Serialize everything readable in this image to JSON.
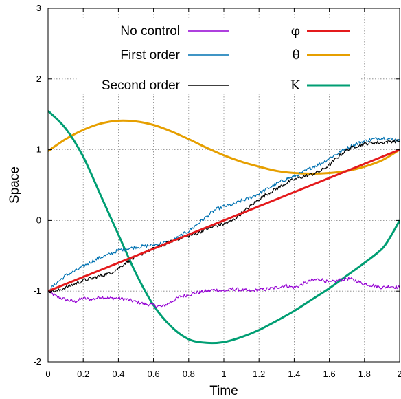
{
  "chart_data": {
    "type": "line",
    "xlabel": "Time",
    "ylabel": "Space",
    "xlim": [
      0,
      2
    ],
    "ylim": [
      -2,
      3
    ],
    "xticks": [
      0,
      0.2,
      0.4,
      0.6,
      0.8,
      1,
      1.2,
      1.4,
      1.6,
      1.8,
      2
    ],
    "xtick_labels": [
      "0",
      "0.2",
      "0.4",
      "0.6",
      "0.8",
      "1",
      "1.2",
      "1.4",
      "1.6",
      "1.8",
      "2"
    ],
    "yticks": [
      -2,
      -1,
      0,
      1,
      2,
      3
    ],
    "ytick_labels": [
      "-2",
      "-1",
      "0",
      "1",
      "2",
      "3"
    ],
    "grid": true,
    "legend_position": "top",
    "series": [
      {
        "name": "No control",
        "color": "#9400d3",
        "noisy": true,
        "x": [
          0,
          0.05,
          0.1,
          0.15,
          0.2,
          0.25,
          0.3,
          0.35,
          0.4,
          0.45,
          0.5,
          0.55,
          0.6,
          0.65,
          0.7,
          0.75,
          0.8,
          0.85,
          0.9,
          0.95,
          1.0,
          1.05,
          1.1,
          1.15,
          1.2,
          1.25,
          1.3,
          1.35,
          1.4,
          1.45,
          1.5,
          1.55,
          1.6,
          1.65,
          1.7,
          1.75,
          1.8,
          1.85,
          1.9,
          1.95,
          2.0
        ],
        "y": [
          -1.0,
          -1.08,
          -1.12,
          -1.15,
          -1.1,
          -1.12,
          -1.08,
          -1.1,
          -1.1,
          -1.12,
          -1.15,
          -1.18,
          -1.2,
          -1.22,
          -1.15,
          -1.08,
          -1.05,
          -1.02,
          -1.0,
          -0.98,
          -1.0,
          -0.97,
          -0.98,
          -1.0,
          -0.98,
          -0.97,
          -0.95,
          -0.92,
          -0.95,
          -0.9,
          -0.85,
          -0.83,
          -0.88,
          -0.85,
          -0.82,
          -0.85,
          -0.9,
          -0.92,
          -0.95,
          -0.93,
          -0.95
        ]
      },
      {
        "name": "First order",
        "color": "#0072b2",
        "noisy": true,
        "x": [
          0,
          0.05,
          0.1,
          0.15,
          0.2,
          0.25,
          0.3,
          0.35,
          0.4,
          0.45,
          0.5,
          0.55,
          0.6,
          0.65,
          0.7,
          0.75,
          0.8,
          0.85,
          0.9,
          0.95,
          1.0,
          1.05,
          1.1,
          1.15,
          1.2,
          1.25,
          1.3,
          1.35,
          1.4,
          1.45,
          1.5,
          1.55,
          1.6,
          1.65,
          1.7,
          1.75,
          1.8,
          1.85,
          1.9,
          1.95,
          2.0
        ],
        "y": [
          -1.0,
          -0.88,
          -0.78,
          -0.72,
          -0.65,
          -0.58,
          -0.52,
          -0.48,
          -0.42,
          -0.4,
          -0.38,
          -0.36,
          -0.35,
          -0.32,
          -0.3,
          -0.22,
          -0.15,
          -0.05,
          0.05,
          0.15,
          0.2,
          0.22,
          0.28,
          0.32,
          0.38,
          0.45,
          0.52,
          0.58,
          0.62,
          0.68,
          0.75,
          0.8,
          0.88,
          0.95,
          1.02,
          1.08,
          1.12,
          1.15,
          1.17,
          1.15,
          1.13
        ]
      },
      {
        "name": "Second order",
        "color": "#000000",
        "noisy": true,
        "x": [
          0,
          0.05,
          0.1,
          0.15,
          0.2,
          0.25,
          0.3,
          0.35,
          0.4,
          0.45,
          0.5,
          0.55,
          0.6,
          0.65,
          0.7,
          0.75,
          0.8,
          0.85,
          0.9,
          0.95,
          1.0,
          1.05,
          1.1,
          1.15,
          1.2,
          1.25,
          1.3,
          1.35,
          1.4,
          1.45,
          1.5,
          1.55,
          1.6,
          1.65,
          1.7,
          1.75,
          1.8,
          1.85,
          1.9,
          1.95,
          2.0
        ],
        "y": [
          -1.0,
          -1.0,
          -0.95,
          -0.9,
          -0.85,
          -0.82,
          -0.78,
          -0.75,
          -0.68,
          -0.58,
          -0.52,
          -0.45,
          -0.4,
          -0.35,
          -0.3,
          -0.25,
          -0.22,
          -0.18,
          -0.12,
          -0.08,
          -0.05,
          0.0,
          0.1,
          0.2,
          0.3,
          0.38,
          0.45,
          0.52,
          0.58,
          0.62,
          0.65,
          0.7,
          0.78,
          0.9,
          1.0,
          1.05,
          1.08,
          1.1,
          1.1,
          1.12,
          1.12
        ]
      },
      {
        "name": "φ",
        "color": "#e41a1c",
        "noisy": false,
        "x": [
          0,
          2
        ],
        "y": [
          -1.0,
          1.0
        ]
      },
      {
        "name": "θ",
        "color": "#e69f00",
        "noisy": false,
        "x": [
          0,
          0.1,
          0.2,
          0.3,
          0.4,
          0.5,
          0.6,
          0.7,
          0.8,
          0.9,
          1.0,
          1.1,
          1.2,
          1.3,
          1.4,
          1.5,
          1.6,
          1.7,
          1.8,
          1.9,
          2.0
        ],
        "y": [
          0.98,
          1.15,
          1.28,
          1.37,
          1.41,
          1.4,
          1.35,
          1.26,
          1.15,
          1.03,
          0.92,
          0.83,
          0.76,
          0.7,
          0.67,
          0.66,
          0.67,
          0.7,
          0.76,
          0.85,
          1.0
        ]
      },
      {
        "name": "K",
        "color": "#009e73",
        "noisy": false,
        "x": [
          0,
          0.1,
          0.2,
          0.3,
          0.4,
          0.5,
          0.6,
          0.7,
          0.8,
          0.9,
          1.0,
          1.1,
          1.2,
          1.3,
          1.4,
          1.5,
          1.6,
          1.7,
          1.8,
          1.9,
          1.95,
          2.0
        ],
        "y": [
          1.55,
          1.3,
          0.9,
          0.35,
          -0.2,
          -0.75,
          -1.2,
          -1.5,
          -1.68,
          -1.73,
          -1.72,
          -1.65,
          -1.55,
          -1.42,
          -1.28,
          -1.12,
          -0.96,
          -0.78,
          -0.6,
          -0.4,
          -0.22,
          0.0
        ]
      }
    ]
  }
}
